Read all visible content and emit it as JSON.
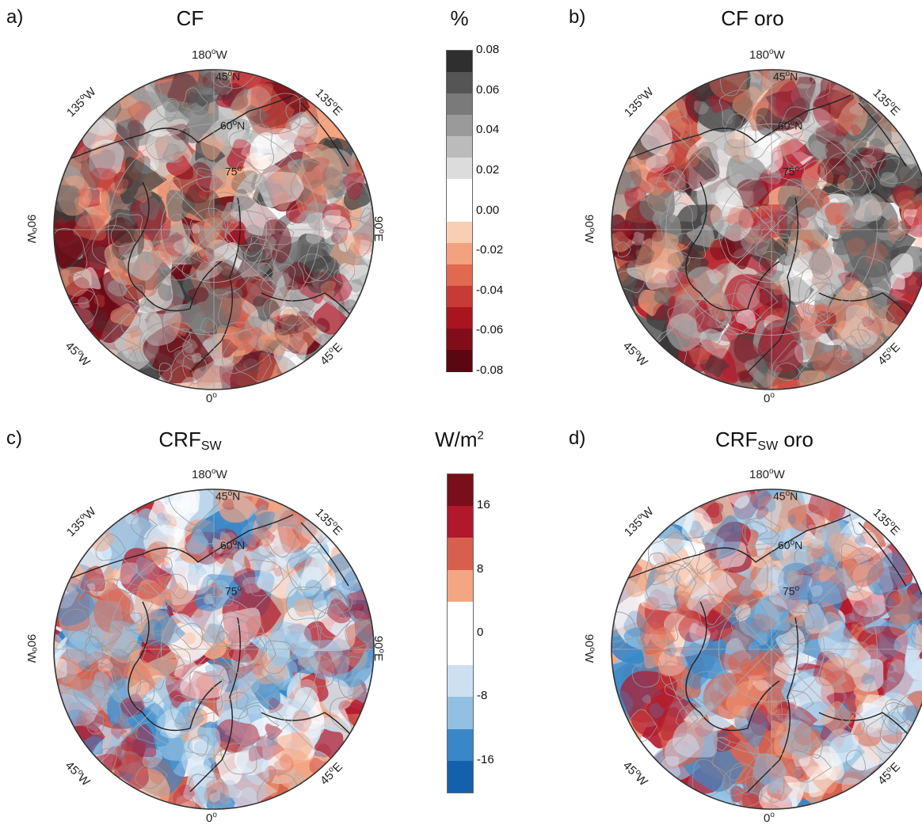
{
  "panels": [
    {
      "id": "a",
      "letter": "a)",
      "title": "CF",
      "title_sub": "",
      "title_suffix": ""
    },
    {
      "id": "b",
      "letter": "b)",
      "title": "CF oro",
      "title_sub": "",
      "title_suffix": ""
    },
    {
      "id": "c",
      "letter": "c)",
      "title": "CRF",
      "title_sub": "SW",
      "title_suffix": ""
    },
    {
      "id": "d",
      "letter": "d)",
      "title": "CRF",
      "title_sub": "SW",
      "title_suffix": " oro"
    }
  ],
  "map_labels": {
    "top": "180",
    "top_suffix": "W",
    "top_left": "135",
    "top_left_suffix": "W",
    "top_right": "135",
    "top_right_suffix": "E",
    "left": "90",
    "left_suffix": "W",
    "right": "90",
    "right_suffix": "E",
    "bottom_left": "45",
    "bottom_left_suffix": "W",
    "bottom_right": "45",
    "bottom_right_suffix": "E",
    "bottom": "0",
    "lat45": "45",
    "lat45_suffix": "N",
    "lat60": "60",
    "lat60_suffix": "N",
    "lat75": "75"
  },
  "colorbars": [
    {
      "title": "%",
      "title_sup": "",
      "ticks": [
        "0.08",
        "0.06",
        "0.04",
        "0.02",
        "0.00",
        "-0.02",
        "-0.04",
        "-0.06",
        "-0.08"
      ],
      "colors": [
        "#2f2f2f",
        "#555555",
        "#7a7a7a",
        "#9a9a9a",
        "#bbbbbb",
        "#dcdcdc",
        "#ffffff",
        "#ffffff",
        "#f9cfb4",
        "#f2a27e",
        "#df6a50",
        "#c73a36",
        "#a8151f",
        "#800d18",
        "#5a0712"
      ]
    },
    {
      "title": "W/m",
      "title_sup": "2",
      "ticks": [
        "16",
        "8",
        "0",
        "-8",
        "-16"
      ],
      "colors": [
        "#7a0e1a",
        "#b2182b",
        "#d6604d",
        "#f4a582",
        "#ffffff",
        "#ffffff",
        "#cce0f2",
        "#92c0e2",
        "#3a87c8",
        "#1560ad"
      ]
    }
  ],
  "palettes": {
    "gray_red": [
      "#3a3a3a",
      "#707070",
      "#a0a0a0",
      "#cccccc",
      "#ffffff",
      "#f4a582",
      "#d6604d",
      "#b2182b",
      "#6e0a16"
    ],
    "red_blue": [
      "#b2182b",
      "#d6604d",
      "#f4a582",
      "#ffffff",
      "#cce0f2",
      "#92c0e2",
      "#3a87c8"
    ]
  }
}
